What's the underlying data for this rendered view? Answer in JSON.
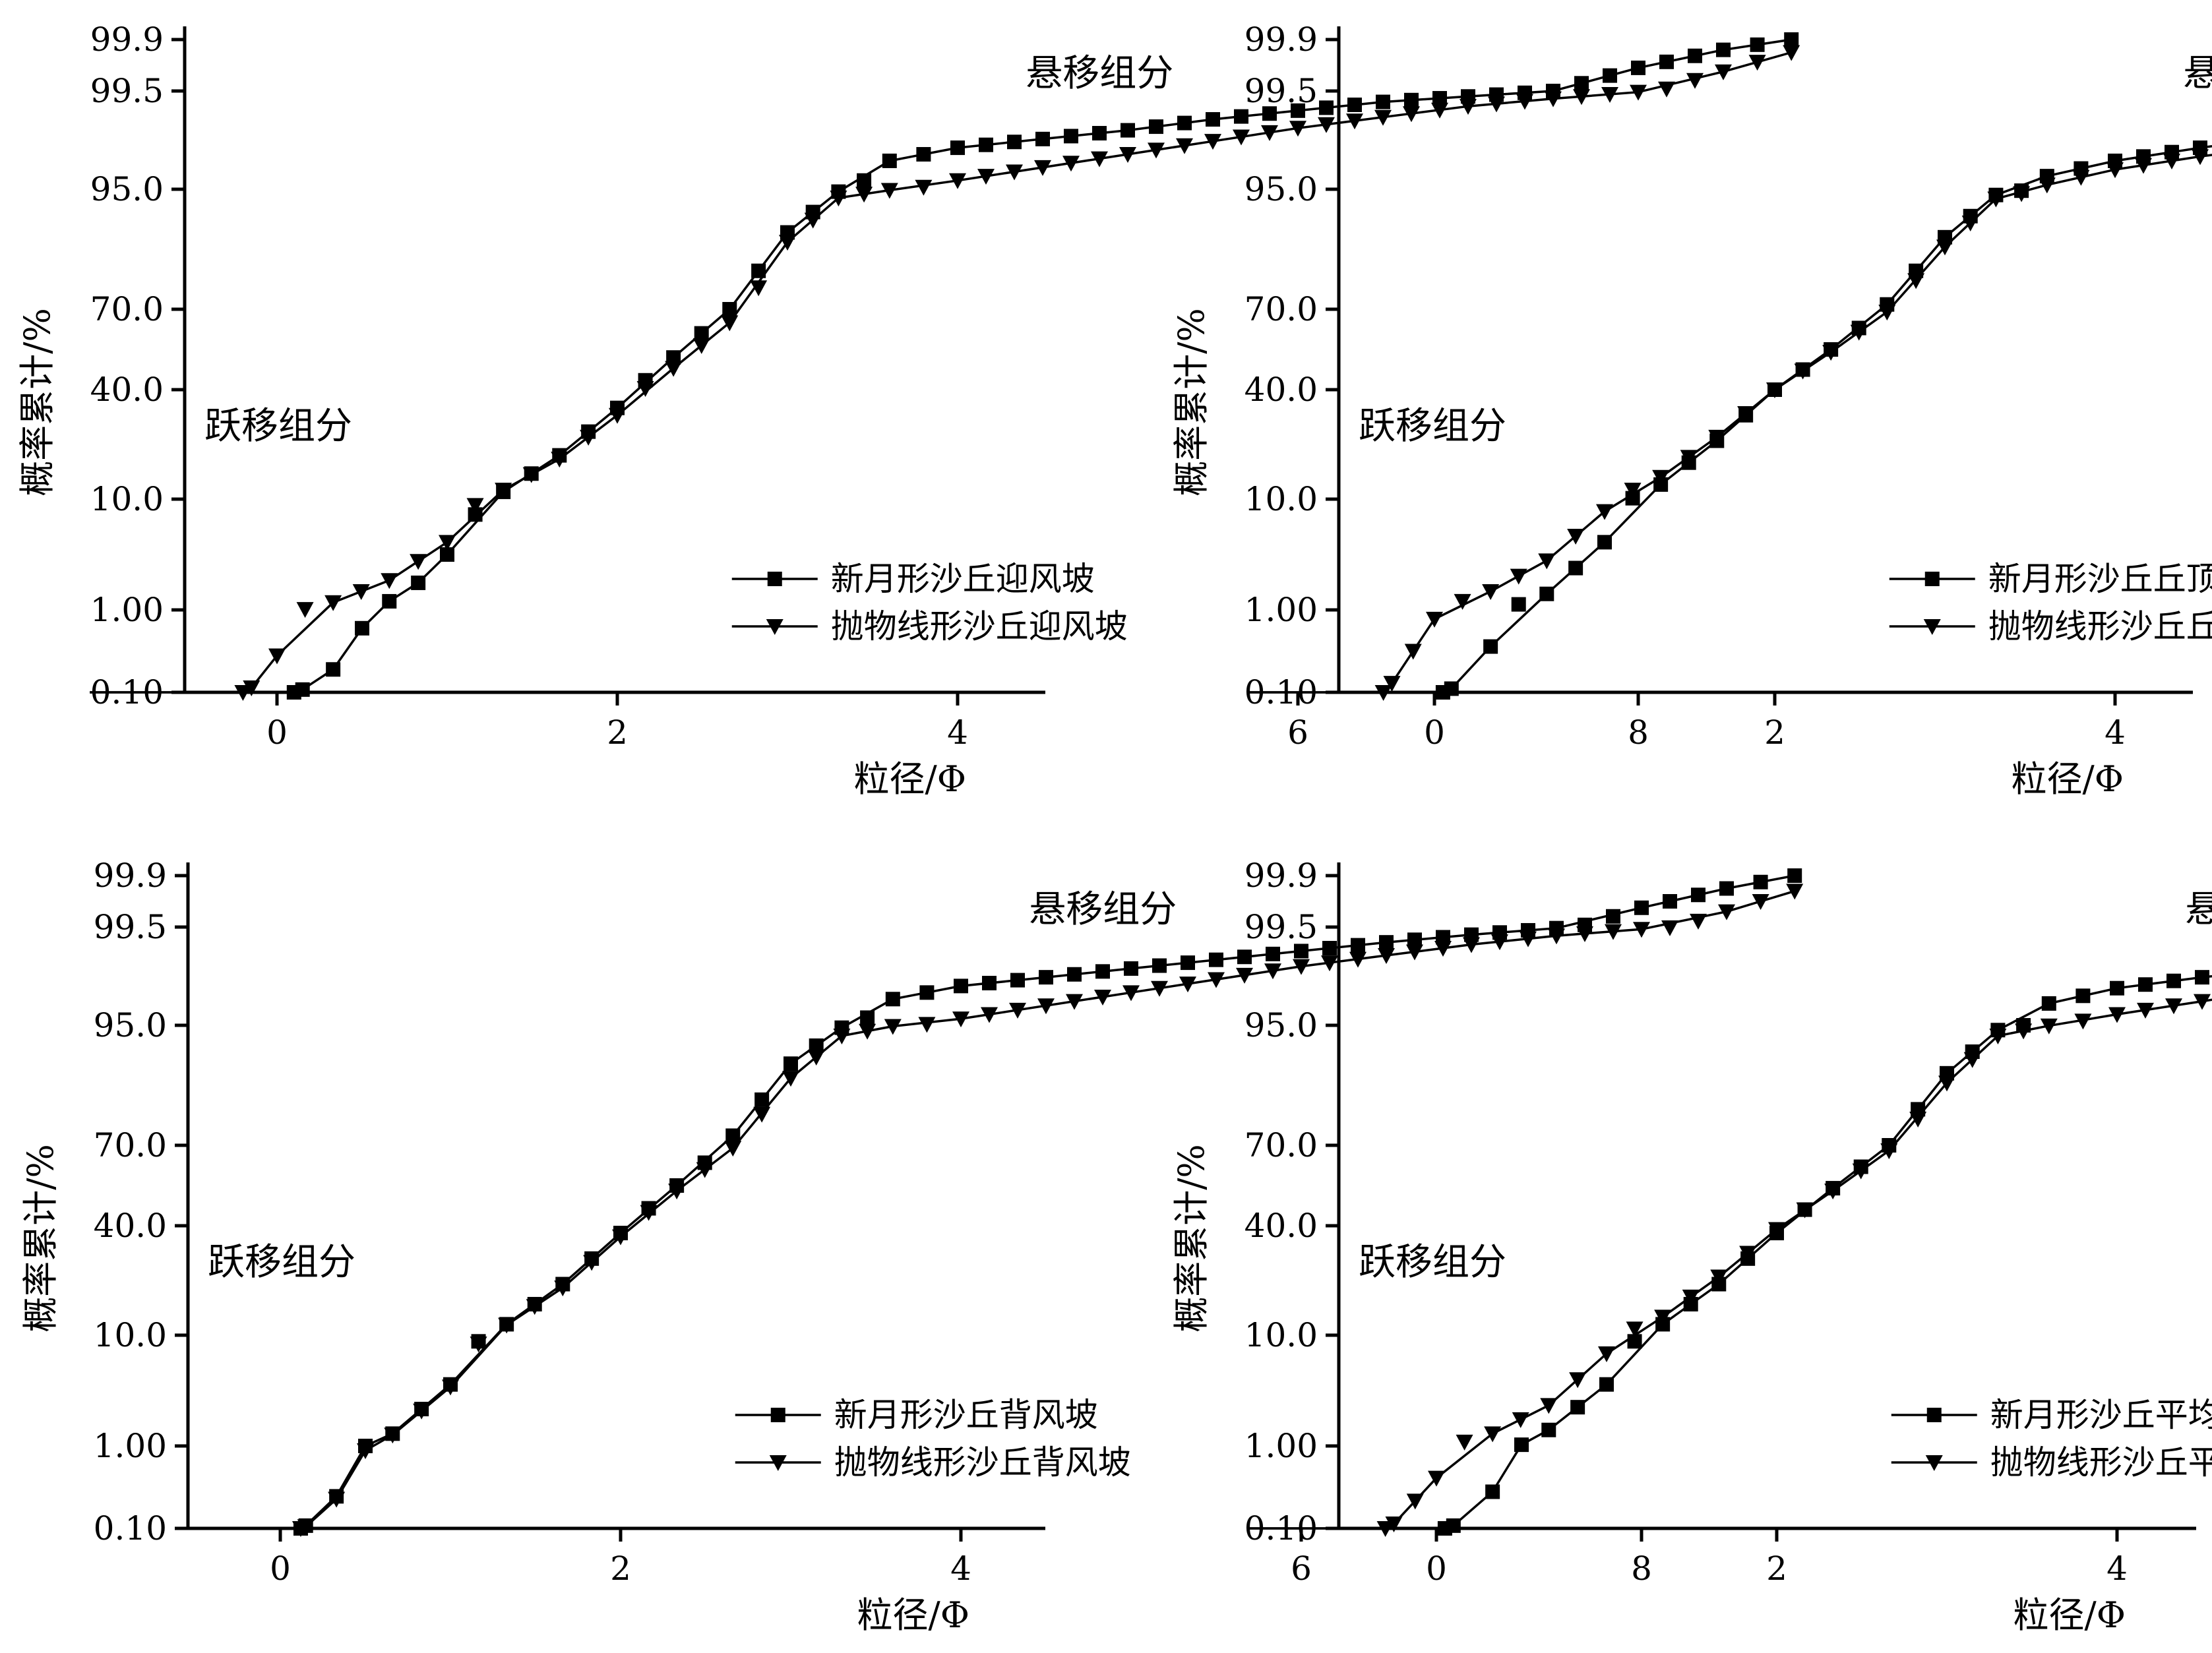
{
  "chart_data": [
    {
      "type": "line",
      "panel": "top-left",
      "xlabel": "粒径/Φ",
      "ylabel": "概率累计/%",
      "x_ticks": [
        0,
        2,
        4,
        6,
        8
      ],
      "y_ticks": [
        "0.10",
        "1.00",
        "10.0",
        "40.0",
        "70.0",
        "95.0",
        "99.5",
        "99.9"
      ],
      "xlim": [
        -1.1,
        8.95
      ],
      "y_scale": "probability",
      "annotations": {
        "saltation": "跃移组分",
        "suspension": "悬移组分"
      },
      "legend_position": "lower-right",
      "series": [
        {
          "name": "新月形沙丘迎风坡",
          "marker": "square",
          "points": [
            [
              -1.1,
              0.1
            ],
            [
              0.1,
              0.1
            ],
            [
              0.15,
              0.13
            ],
            [
              0.33,
              0.35
            ],
            [
              0.5,
              0.8
            ],
            [
              0.66,
              1.7
            ],
            [
              0.83,
              3.2
            ],
            [
              1.0,
              5.5
            ],
            [
              1.33,
              12
            ],
            [
              1.66,
              22
            ],
            [
              2.0,
              35
            ],
            [
              2.33,
              52
            ],
            [
              2.66,
              70
            ],
            [
              3.0,
              86
            ],
            [
              3.3,
              94.5
            ],
            [
              3.6,
              96.3
            ],
            [
              4.0,
              96.9
            ],
            [
              4.5,
              97.3
            ],
            [
              5.0,
              97.7
            ],
            [
              5.5,
              98.2
            ],
            [
              6.0,
              98.6
            ],
            [
              6.5,
              99.0
            ],
            [
              7.0,
              99.25
            ],
            [
              7.5,
              99.5
            ],
            [
              8.0,
              99.68
            ],
            [
              8.5,
              99.82
            ],
            [
              8.9,
              99.9
            ]
          ]
        },
        {
          "name": "抛物线形沙丘迎风坡",
          "marker": "triangle-down",
          "points": [
            [
              -1.1,
              0.1
            ],
            [
              -0.2,
              0.1
            ],
            [
              -0.15,
              0.15
            ],
            [
              0.0,
              0.5
            ],
            [
              0.33,
              1.6
            ],
            [
              0.66,
              3.4
            ],
            [
              1.0,
              6.5
            ],
            [
              1.33,
              12.5
            ],
            [
              1.66,
              21
            ],
            [
              2.0,
              33
            ],
            [
              2.33,
              48
            ],
            [
              2.66,
              65
            ],
            [
              3.0,
              84
            ],
            [
              3.3,
              93.2
            ],
            [
              3.6,
              94.8
            ],
            [
              4.0,
              95.4
            ],
            [
              4.5,
              96.0
            ],
            [
              5.0,
              96.6
            ],
            [
              5.5,
              97.2
            ],
            [
              6.0,
              97.8
            ],
            [
              6.5,
              98.3
            ],
            [
              7.0,
              98.8
            ],
            [
              7.5,
              99.15
            ],
            [
              8.0,
              99.45
            ],
            [
              8.5,
              99.65
            ],
            [
              8.9,
              99.8
            ]
          ]
        }
      ]
    },
    {
      "type": "line",
      "panel": "top-right",
      "xlabel": "粒径/Φ",
      "ylabel": "概率累计/%",
      "x_ticks": [
        0,
        2,
        4,
        6,
        8
      ],
      "y_ticks": [
        "0.10",
        "1.00",
        "10.0",
        "40.0",
        "70.0",
        "95.0",
        "99.5",
        "99.9"
      ],
      "xlim": [
        -1.1,
        8.95
      ],
      "y_scale": "probability",
      "annotations": {
        "saltation": "跃移组分",
        "suspension": "悬移组分"
      },
      "legend_position": "lower-right",
      "series": [
        {
          "name": "新月形沙丘丘顶",
          "marker": "square",
          "points": [
            [
              -1.1,
              0.1
            ],
            [
              0.05,
              0.1
            ],
            [
              0.1,
              0.14
            ],
            [
              0.33,
              0.6
            ],
            [
              0.66,
              2.3
            ],
            [
              1.0,
              6.5
            ],
            [
              1.33,
              14
            ],
            [
              1.66,
              26
            ],
            [
              2.0,
              40
            ],
            [
              2.33,
              55
            ],
            [
              2.66,
              71
            ],
            [
              3.0,
              85
            ],
            [
              3.3,
              93.8
            ],
            [
              3.6,
              95.6
            ],
            [
              4.0,
              96.3
            ],
            [
              4.5,
              96.9
            ],
            [
              5.0,
              97.4
            ],
            [
              5.5,
              97.9
            ],
            [
              6.0,
              98.3
            ],
            [
              6.5,
              98.8
            ],
            [
              7.0,
              99.15
            ],
            [
              7.5,
              99.45
            ],
            [
              8.0,
              99.65
            ],
            [
              8.5,
              99.8
            ],
            [
              8.9,
              99.9
            ]
          ]
        },
        {
          "name": "抛物线形沙丘丘顶",
          "marker": "triangle-down",
          "points": [
            [
              -1.1,
              0.1
            ],
            [
              -0.3,
              0.1
            ],
            [
              -0.25,
              0.2
            ],
            [
              0.0,
              0.9
            ],
            [
              0.33,
              2.5
            ],
            [
              0.66,
              5.0
            ],
            [
              1.0,
              9.0
            ],
            [
              1.33,
              16
            ],
            [
              1.66,
              27
            ],
            [
              2.0,
              40
            ],
            [
              2.33,
              54
            ],
            [
              2.66,
              69
            ],
            [
              3.0,
              83
            ],
            [
              3.3,
              93
            ],
            [
              3.6,
              95.2
            ],
            [
              4.0,
              95.9
            ],
            [
              4.5,
              96.5
            ],
            [
              5.0,
              97.0
            ],
            [
              5.5,
              97.5
            ],
            [
              6.0,
              98.0
            ],
            [
              6.5,
              98.5
            ],
            [
              7.0,
              98.9
            ],
            [
              7.5,
              99.25
            ],
            [
              8.0,
              99.5
            ],
            [
              8.5,
              99.68
            ],
            [
              8.9,
              99.8
            ]
          ]
        }
      ]
    },
    {
      "type": "line",
      "panel": "bottom-left",
      "xlabel": "粒径/Φ",
      "ylabel": "概率累计/%",
      "x_ticks": [
        0,
        2,
        4,
        6,
        8
      ],
      "y_ticks": [
        "0.10",
        "1.00",
        "10.0",
        "40.0",
        "70.0",
        "95.0",
        "99.5",
        "99.9"
      ],
      "xlim": [
        -1.1,
        8.95
      ],
      "y_scale": "probability",
      "annotations": {
        "saltation": "跃移组分",
        "suspension": "悬移组分"
      },
      "legend_position": "lower-right",
      "series": [
        {
          "name": "新月形沙丘背风坡",
          "marker": "square",
          "points": [
            [
              0.12,
              0.1
            ],
            [
              0.15,
              0.13
            ],
            [
              0.33,
              0.45
            ],
            [
              0.5,
              1.0
            ],
            [
              0.66,
              2.0
            ],
            [
              1.0,
              6.0
            ],
            [
              1.33,
              13
            ],
            [
              1.66,
              24
            ],
            [
              2.0,
              38
            ],
            [
              2.33,
              55
            ],
            [
              2.66,
              72
            ],
            [
              3.0,
              87
            ],
            [
              3.3,
              94.5
            ],
            [
              3.6,
              96.2
            ],
            [
              4.0,
              96.8
            ],
            [
              4.5,
              97.2
            ],
            [
              5.0,
              97.6
            ],
            [
              5.5,
              98.0
            ],
            [
              6.0,
              98.4
            ],
            [
              6.5,
              98.8
            ],
            [
              7.0,
              99.15
            ],
            [
              7.5,
              99.45
            ],
            [
              8.0,
              99.65
            ],
            [
              8.5,
              99.8
            ],
            [
              8.9,
              99.9
            ]
          ]
        },
        {
          "name": "抛物线形沙丘背风坡",
          "marker": "triangle-down",
          "points": [
            [
              0.12,
              0.1
            ],
            [
              0.15,
              0.12
            ],
            [
              0.33,
              0.42
            ],
            [
              0.5,
              0.95
            ],
            [
              0.66,
              1.9
            ],
            [
              1.0,
              5.8
            ],
            [
              1.33,
              12.8
            ],
            [
              1.66,
              23
            ],
            [
              2.0,
              37
            ],
            [
              2.33,
              53
            ],
            [
              2.66,
              69
            ],
            [
              3.0,
              84
            ],
            [
              3.3,
              92.8
            ],
            [
              3.6,
              94.8
            ],
            [
              4.0,
              95.3
            ],
            [
              4.5,
              95.9
            ],
            [
              5.0,
              96.5
            ],
            [
              5.5,
              97.1
            ],
            [
              6.0,
              97.7
            ],
            [
              6.5,
              98.2
            ],
            [
              7.0,
              98.7
            ],
            [
              7.5,
              99.1
            ],
            [
              8.0,
              99.4
            ],
            [
              8.5,
              99.62
            ],
            [
              8.9,
              99.78
            ]
          ]
        }
      ]
    },
    {
      "type": "line",
      "panel": "bottom-right",
      "xlabel": "粒径/Φ",
      "ylabel": "概率累计/%",
      "x_ticks": [
        0,
        2,
        4,
        6,
        8
      ],
      "y_ticks": [
        "0.10",
        "1.00",
        "10.0",
        "40.0",
        "70.0",
        "95.0",
        "99.5",
        "99.9"
      ],
      "xlim": [
        -1.1,
        8.95
      ],
      "y_scale": "probability",
      "annotations": {
        "saltation": "跃移组分",
        "suspension": "悬移组分"
      },
      "legend_position": "lower-right",
      "series": [
        {
          "name": "新月形沙丘平均",
          "marker": "square",
          "points": [
            [
              -1.1,
              0.1
            ],
            [
              0.05,
              0.1
            ],
            [
              0.1,
              0.13
            ],
            [
              0.33,
              0.5
            ],
            [
              0.5,
              1.1
            ],
            [
              0.66,
              2.3
            ],
            [
              1.0,
              6.0
            ],
            [
              1.33,
              13
            ],
            [
              1.66,
              24
            ],
            [
              2.0,
              38
            ],
            [
              2.33,
              54
            ],
            [
              2.66,
              70
            ],
            [
              3.0,
              85
            ],
            [
              3.3,
              94
            ],
            [
              3.6,
              96.0
            ],
            [
              4.0,
              96.7
            ],
            [
              4.5,
              97.2
            ],
            [
              5.0,
              97.6
            ],
            [
              5.5,
              98.1
            ],
            [
              6.0,
              98.5
            ],
            [
              6.5,
              98.9
            ],
            [
              7.0,
              99.2
            ],
            [
              7.5,
              99.48
            ],
            [
              8.0,
              99.66
            ],
            [
              8.5,
              99.8
            ],
            [
              8.9,
              99.9
            ]
          ]
        },
        {
          "name": "抛物线形沙丘平均",
          "marker": "triangle-down",
          "points": [
            [
              -1.1,
              0.1
            ],
            [
              -0.3,
              0.1
            ],
            [
              -0.25,
              0.15
            ],
            [
              0.0,
              0.65
            ],
            [
              0.33,
              2.0
            ],
            [
              0.66,
              4.3
            ],
            [
              1.0,
              8.5
            ],
            [
              1.33,
              15
            ],
            [
              1.66,
              26
            ],
            [
              2.0,
              39
            ],
            [
              2.33,
              53
            ],
            [
              2.66,
              68
            ],
            [
              3.0,
              83
            ],
            [
              3.3,
              92.8
            ],
            [
              3.6,
              94.9
            ],
            [
              4.0,
              95.5
            ],
            [
              4.5,
              96.1
            ],
            [
              5.0,
              96.7
            ],
            [
              5.5,
              97.3
            ],
            [
              6.0,
              97.9
            ],
            [
              6.5,
              98.4
            ],
            [
              7.0,
              98.85
            ],
            [
              7.5,
              99.2
            ],
            [
              8.0,
              99.48
            ],
            [
              8.5,
              99.66
            ],
            [
              8.9,
              99.8
            ]
          ]
        }
      ]
    }
  ]
}
